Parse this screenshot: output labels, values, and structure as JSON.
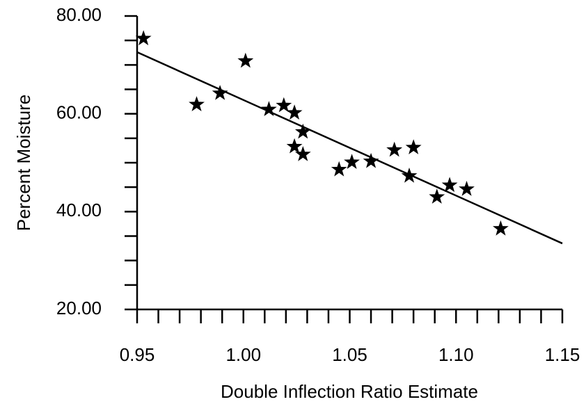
{
  "chart_data": {
    "type": "scatter",
    "xlabel": "Double Inflection Ratio Estimate",
    "ylabel": "Percent Moisture",
    "x": [
      0.953,
      0.978,
      0.989,
      1.001,
      1.012,
      1.019,
      1.024,
      1.024,
      1.028,
      1.028,
      1.045,
      1.051,
      1.06,
      1.071,
      1.08,
      1.078,
      1.091,
      1.097,
      1.105,
      1.121
    ],
    "values": [
      75.4,
      61.9,
      64.2,
      70.8,
      60.9,
      61.7,
      60.2,
      53.3,
      56.3,
      51.7,
      48.6,
      50.1,
      50.3,
      52.6,
      53.1,
      47.3,
      43.0,
      45.4,
      44.6,
      36.5
    ],
    "color": "#000000",
    "trend": {
      "x": [
        0.95,
        1.15
      ],
      "values": [
        72.6,
        33.5
      ]
    },
    "xlim": [
      0.95,
      1.15
    ],
    "xticks": [
      0.95,
      {
        "value": 1,
        "label": "1.00"
      },
      1.05,
      {
        "value": 1.1,
        "label": "1.10"
      },
      1.15
    ],
    "xminorticks": [
      0.96,
      0.97,
      0.98,
      0.99,
      1.01,
      1.02,
      1.03,
      1.04,
      1.06,
      1.07,
      1.08,
      1.09,
      1.11,
      1.12,
      1.13,
      1.14
    ],
    "ylim": [
      20,
      80
    ],
    "yticks": [
      {
        "value": 20,
        "label": "20.00"
      },
      {
        "value": 40,
        "label": "40.00"
      },
      {
        "value": 60,
        "label": "60.00"
      },
      {
        "value": 80,
        "label": "80.00"
      }
    ],
    "yminorticks": [
      25,
      30,
      35,
      45,
      50,
      55,
      65,
      70,
      75
    ],
    "grid": false
  }
}
